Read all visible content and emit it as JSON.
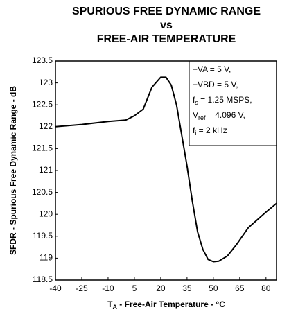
{
  "chart_data": {
    "type": "line",
    "title": [
      "SPURIOUS FREE DYNAMIC RANGE",
      "vs",
      "FREE-AIR TEMPERATURE"
    ],
    "y_label": "SFDR - Spurious Free Dynamic Range - dB",
    "x_label": [
      "T",
      "A",
      " - Free-Air Temperature - °C"
    ],
    "annotation": [
      [
        "+VA = 5 V,"
      ],
      [
        "+VBD = 5 V,"
      ],
      [
        "f",
        "s",
        " = 1.25 MSPS,"
      ],
      [
        "V",
        "ref",
        " = 4.096 V,"
      ],
      [
        "f",
        "i",
        " = 2 kHz"
      ]
    ],
    "x": [
      -40,
      -25,
      -10,
      0,
      5,
      10,
      15,
      20,
      23,
      26,
      29,
      32,
      35,
      38,
      41,
      44,
      47,
      50,
      53,
      58,
      63,
      70,
      80,
      86
    ],
    "series": [
      {
        "color": "#000000",
        "values": [
          122.0,
          122.05,
          122.12,
          122.15,
          122.25,
          122.4,
          122.9,
          123.13,
          123.13,
          122.95,
          122.5,
          121.8,
          121.1,
          120.3,
          119.6,
          119.2,
          118.97,
          118.92,
          118.93,
          119.05,
          119.3,
          119.7,
          120.05,
          120.25
        ]
      }
    ],
    "xlim": [
      -40,
      86
    ],
    "xticks": [
      -40,
      -25,
      -10,
      5,
      20,
      35,
      50,
      65,
      80
    ],
    "ylim": [
      118.5,
      123.5
    ],
    "yticks": [
      118.5,
      119,
      119.5,
      120,
      120.5,
      121,
      121.5,
      122,
      122.5,
      123,
      123.5
    ],
    "grid": false
  }
}
